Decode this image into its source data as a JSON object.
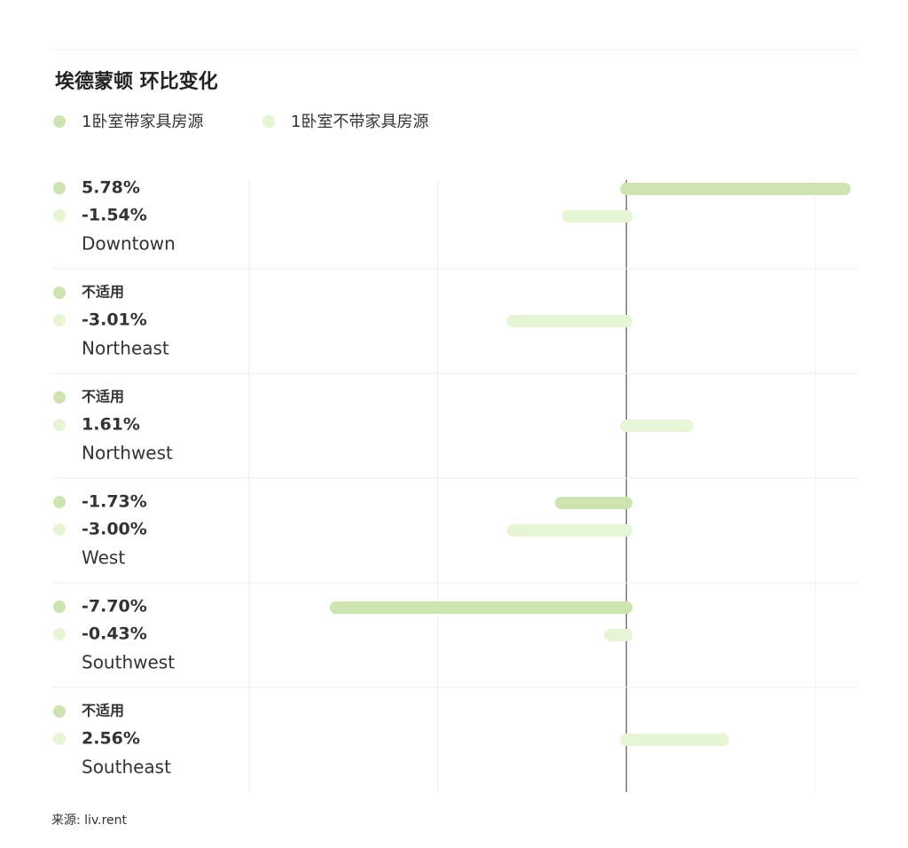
{
  "chart_data": {
    "type": "bar",
    "title": "埃德蒙顿 环比变化",
    "categories": [
      "Downtown",
      "Northeast",
      "Northwest",
      "West",
      "Southwest",
      "Southeast"
    ],
    "series": [
      {
        "name": "1卧室带家具房源",
        "color": "#cde3b0",
        "values": [
          5.78,
          null,
          null,
          -1.73,
          -7.7,
          null
        ],
        "value_labels": [
          "5.78%",
          "不适用",
          "不适用",
          "-1.73%",
          "-7.70%",
          "不适用"
        ]
      },
      {
        "name": "1卧室不带家具房源",
        "color": "#e6f5d3",
        "values": [
          -1.54,
          -3.01,
          1.61,
          -3.0,
          -0.43,
          2.56
        ],
        "value_labels": [
          "-1.54%",
          "-3.01%",
          "1.61%",
          "-3.00%",
          "-0.43%",
          "2.56%"
        ]
      }
    ],
    "xlim": [
      -10,
      6.15
    ],
    "xticks": [
      -10,
      -5,
      0,
      5
    ],
    "grid": true,
    "source": "来源: liv.rent"
  }
}
